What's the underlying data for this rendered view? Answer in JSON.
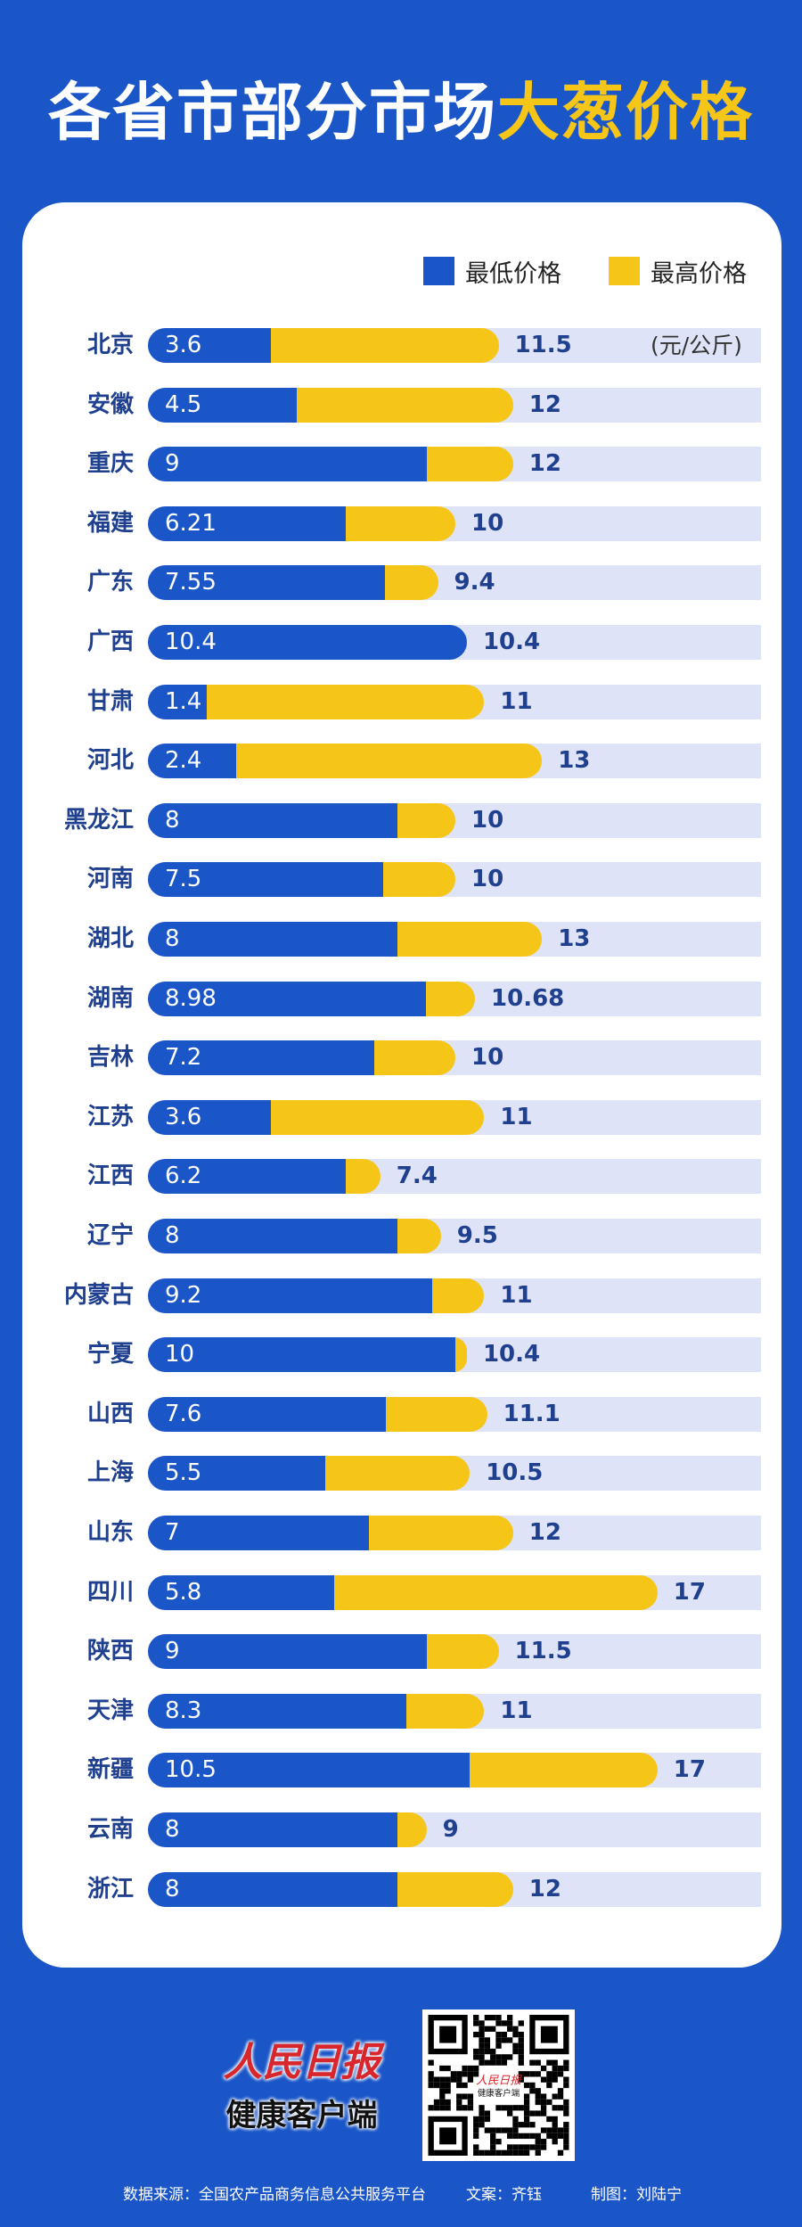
{
  "title": {
    "white": "各省市部分市场",
    "highlight": "大葱价格"
  },
  "colors": {
    "background": "#1a56c8",
    "min": "#1a56c8",
    "max": "#f5c518",
    "track": "#dfe3f7",
    "label": "#1f3f8f"
  },
  "chart_data": {
    "type": "bar",
    "orientation": "horizontal",
    "unit": "(元/公斤)",
    "categories": [
      "北京",
      "安徽",
      "重庆",
      "福建",
      "广东",
      "广西",
      "甘肃",
      "河北",
      "黑龙江",
      "河南",
      "湖北",
      "湖南",
      "吉林",
      "江苏",
      "江西",
      "辽宁",
      "内蒙古",
      "宁夏",
      "山西",
      "上海",
      "山东",
      "四川",
      "陕西",
      "天津",
      "新疆",
      "云南",
      "浙江"
    ],
    "series": [
      {
        "name": "最低价格",
        "color": "#1a56c8",
        "values": [
          "3.6",
          "4.5",
          "9",
          "6.21",
          "7.55",
          "10.4",
          "1.4",
          "2.4",
          "8",
          "7.5",
          "8",
          "8.98",
          "7.2",
          "3.6",
          "6.2",
          "8",
          "9.2",
          "10",
          "7.6",
          "5.5",
          "7",
          "5.8",
          "9",
          "8.3",
          "10.5",
          "8",
          "8"
        ]
      },
      {
        "name": "最高价格",
        "color": "#f5c518",
        "values": [
          "11.5",
          "12",
          "12",
          "10",
          "9.4",
          "10.4",
          "11",
          "13",
          "10",
          "10",
          "13",
          "10.68",
          "10",
          "11",
          "7.4",
          "9.5",
          "11",
          "10.4",
          "11.1",
          "10.5",
          "12",
          "17",
          "11.5",
          "11",
          "17",
          "9",
          "12"
        ]
      }
    ],
    "legend": "top-right",
    "grid": false
  },
  "logo": {
    "line1": "人民日报",
    "line2": "健康客户端"
  },
  "footer": {
    "source": "数据来源：全国农产品商务信息公共服务平台",
    "writer": "文案：齐钰",
    "designer": "制图：刘陆宁"
  }
}
